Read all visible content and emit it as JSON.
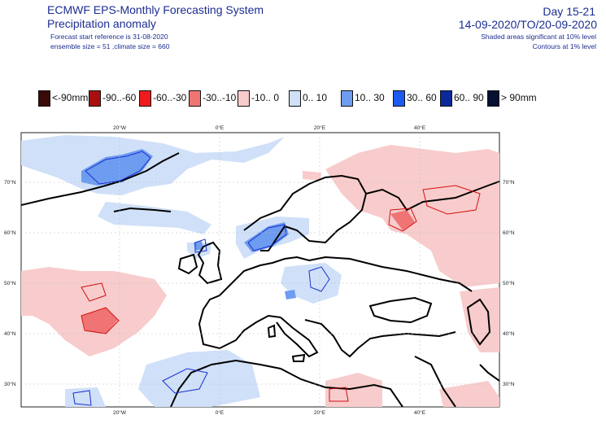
{
  "header": {
    "title_line1": "ECMWF EPS-Monthly Forecasting System",
    "title_line2": "Precipitation anomaly",
    "forecast_ref": "Forecast start reference is 31-08-2020",
    "ensemble": "ensemble size = 51  ,climate size = 660",
    "day_range": "Day 15-21",
    "period": "14-09-2020/TO/20-09-2020",
    "significance_shaded": "Shaded areas significant at 10% level",
    "significance_contours": "Contours at 1% level"
  },
  "legend": [
    {
      "label": "<-90mm",
      "color": "#3a0a08"
    },
    {
      "label": "-90..-60",
      "color": "#a81010"
    },
    {
      "label": "-60..-30",
      "color": "#ee1c1c"
    },
    {
      "label": "-30..-10",
      "color": "#f07474"
    },
    {
      "label": "-10..  0",
      "color": "#f8cccc"
    },
    {
      "label": "0..  10",
      "color": "#cfe0f8"
    },
    {
      "label": "10..  30",
      "color": "#6e9cf0"
    },
    {
      "label": "30..  60",
      "color": "#1c5af0"
    },
    {
      "label": "60..  90",
      "color": "#0a2a9c"
    },
    {
      "label": ">  90mm",
      "color": "#061030"
    }
  ],
  "map": {
    "lon_labels": [
      "20°W",
      "0°E",
      "20°E",
      "40°E"
    ],
    "lat_labels": [
      "70°N",
      "60°N",
      "50°N",
      "40°N",
      "30°N"
    ]
  }
}
